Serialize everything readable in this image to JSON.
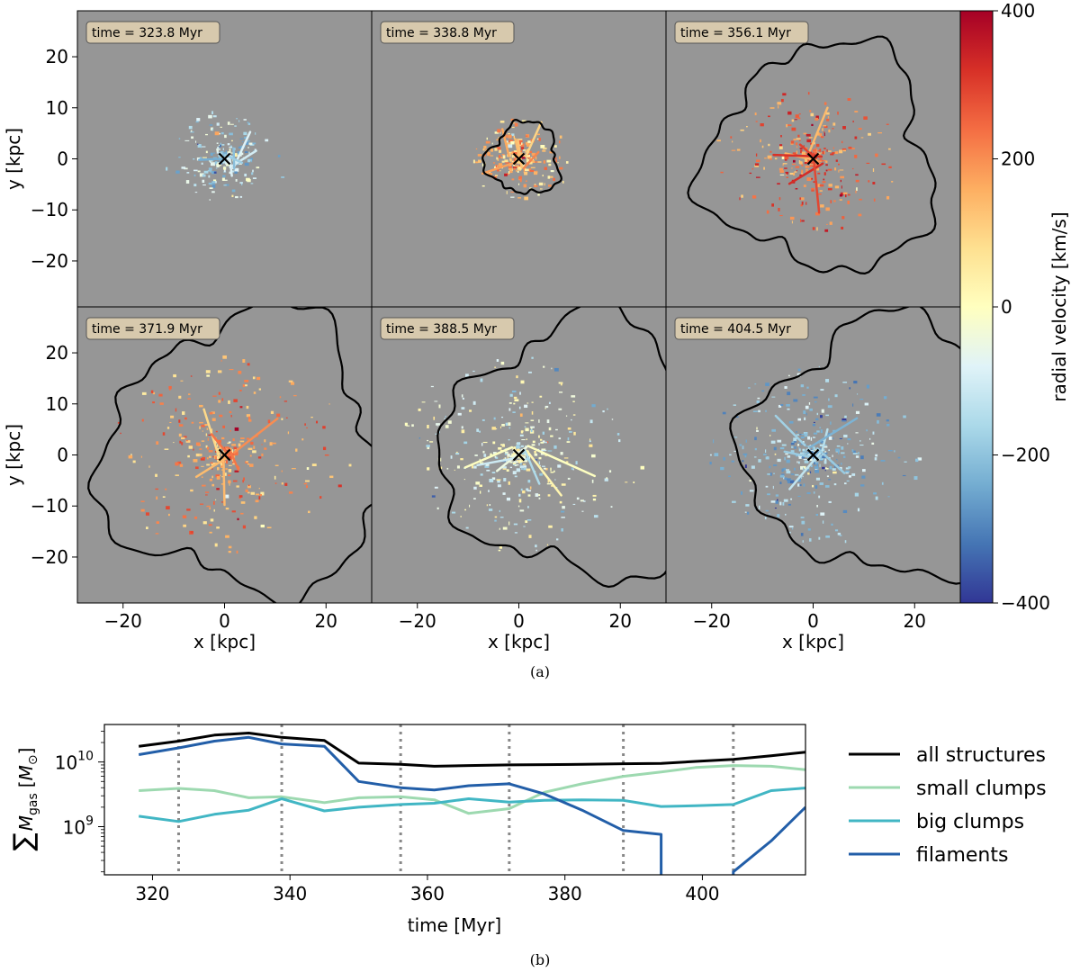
{
  "chart_data": [
    {
      "type": "heatmap",
      "panel": "a",
      "caption": "(a)",
      "xlabel": "x [kpc]",
      "ylabel": "y [kpc]",
      "xlim": [
        -29,
        29
      ],
      "ylim": [
        -29,
        29
      ],
      "xticks": [
        -20,
        0,
        20
      ],
      "yticks": [
        -20,
        -10,
        0,
        10,
        20
      ],
      "xtick_labels": [
        "−20",
        "0",
        "20"
      ],
      "ytick_labels": [
        "−20",
        "−10",
        "0",
        "10",
        "20"
      ],
      "colorbar": {
        "label": "radial velocity [km/s]",
        "range": [
          -400,
          400
        ],
        "ticks": [
          -400,
          -200,
          0,
          200,
          400
        ],
        "tick_labels": [
          "−400",
          "−200",
          "0",
          "200",
          "400"
        ],
        "cmap": [
          "#313695",
          "#4575b4",
          "#74add1",
          "#abd9e9",
          "#e0f3f8",
          "#ffffbf",
          "#fee090",
          "#fdae61",
          "#f46d43",
          "#d73027",
          "#a50026"
        ]
      },
      "background": "#969696",
      "marker": "x at (0, 0)",
      "panels": [
        {
          "time_label": "time = 323.8 Myr",
          "time": 323.8,
          "contour": null,
          "velocity_bias": -140,
          "spread": 6
        },
        {
          "time_label": "time = 338.8 Myr",
          "time": 338.8,
          "contour": {
            "center": [
              1,
              0
            ],
            "radius": 7
          },
          "velocity_bias": 120,
          "spread": 5
        },
        {
          "time_label": "time = 356.1 Myr",
          "time": 356.1,
          "contour": {
            "center": [
              2,
              0
            ],
            "radius": 22
          },
          "velocity_bias": 230,
          "spread": 9
        },
        {
          "time_label": "time = 371.9 Myr",
          "time": 371.9,
          "contour": {
            "center": [
              4,
              0
            ],
            "radius": 27
          },
          "velocity_bias": 180,
          "spread": 12
        },
        {
          "time_label": "time = 388.5 Myr",
          "time": 388.5,
          "contour": {
            "center": [
              11,
              1
            ],
            "radius": 25
          },
          "velocity_bias": -60,
          "spread": 12
        },
        {
          "time_label": "time = 404.5 Myr",
          "time": 404.5,
          "contour": {
            "center": [
              13,
              1
            ],
            "radius": 25
          },
          "velocity_bias": -190,
          "spread": 11
        }
      ]
    },
    {
      "type": "line",
      "panel": "b",
      "caption": "(b)",
      "xlabel": "time [Myr]",
      "ylabel": "∑M_gas [M_⊙]",
      "ylabel_sum": "∑",
      "ylabel_m": "M",
      "ylabel_sub": "gas",
      "ylabel_unit_open": "[",
      "ylabel_unit_m": "M",
      "ylabel_unit_sub": "⊙",
      "ylabel_unit_close": "]",
      "yscale": "log",
      "xlim": [
        313,
        415
      ],
      "ylim": [
        180000000.0,
        38000000000.0
      ],
      "xticks": [
        320,
        340,
        360,
        380,
        400
      ],
      "xtick_labels": [
        "320",
        "340",
        "360",
        "380",
        "400"
      ],
      "yticks": [
        1000000000.0,
        10000000000.0
      ],
      "ytick_base": [
        "10",
        "10"
      ],
      "ytick_exp": [
        "9",
        "10"
      ],
      "vlines": [
        323.8,
        338.8,
        356.1,
        371.9,
        388.5,
        404.5
      ],
      "legend_position": "right",
      "series": [
        {
          "name": "all structures",
          "color": "#000000",
          "x": [
            318,
            323.8,
            329,
            334,
            338.8,
            345,
            350,
            356.1,
            361,
            366,
            371.9,
            377,
            382.5,
            388.5,
            394,
            399,
            404.5,
            410,
            415
          ],
          "y": [
            17500000000.0,
            21000000000.0,
            26000000000.0,
            28000000000.0,
            24000000000.0,
            21500000000.0,
            9600000000.0,
            9200000000.0,
            8600000000.0,
            8800000000.0,
            9000000000.0,
            9100000000.0,
            9200000000.0,
            9400000000.0,
            9500000000.0,
            10200000000.0,
            11000000000.0,
            12500000000.0,
            14200000000.0
          ]
        },
        {
          "name": "small clumps",
          "color": "#9dd9b0",
          "x": [
            318,
            323.8,
            329,
            334,
            338.8,
            345,
            350,
            356.1,
            361,
            366,
            371.9,
            377,
            382.5,
            388.5,
            394,
            399,
            404.5,
            410,
            415
          ],
          "y": [
            3600000000.0,
            3900000000.0,
            3600000000.0,
            2800000000.0,
            2900000000.0,
            2350000000.0,
            2800000000.0,
            2900000000.0,
            2600000000.0,
            1600000000.0,
            1900000000.0,
            3400000000.0,
            4600000000.0,
            6000000000.0,
            7000000000.0,
            8200000000.0,
            8800000000.0,
            8600000000.0,
            7600000000.0
          ]
        },
        {
          "name": "big clumps",
          "color": "#41b6c4",
          "x": [
            318,
            323.8,
            329,
            334,
            338.8,
            345,
            350,
            356.1,
            361,
            366,
            371.9,
            377,
            382.5,
            388.5,
            394,
            399,
            404.5,
            410,
            415
          ],
          "y": [
            1450000000.0,
            1200000000.0,
            1550000000.0,
            1800000000.0,
            2700000000.0,
            1750000000.0,
            2000000000.0,
            2200000000.0,
            2300000000.0,
            2700000000.0,
            2400000000.0,
            2550000000.0,
            2600000000.0,
            2550000000.0,
            2050000000.0,
            2100000000.0,
            2200000000.0,
            3600000000.0,
            3950000000.0
          ]
        },
        {
          "name": "filaments",
          "color": "#225ea8",
          "segments": [
            {
              "x": [
                318,
                323.8,
                329,
                334,
                338.8,
                345,
                350,
                356.1,
                361,
                366,
                371.9,
                377,
                382.5,
                388.5,
                394,
                394
              ],
              "y": [
                13000000000.0,
                16500000000.0,
                21000000000.0,
                24000000000.0,
                19000000000.0,
                17500000000.0,
                5000000000.0,
                4000000000.0,
                3700000000.0,
                4300000000.0,
                4600000000.0,
                3200000000.0,
                1800000000.0,
                870000000.0,
                760000000.0,
                10000000.0
              ]
            },
            {
              "x": [
                404.5,
                404.5,
                410,
                415
              ],
              "y": [
                10000000.0,
                200000000.0,
                600000000.0,
                2000000000.0
              ]
            }
          ]
        }
      ]
    }
  ]
}
